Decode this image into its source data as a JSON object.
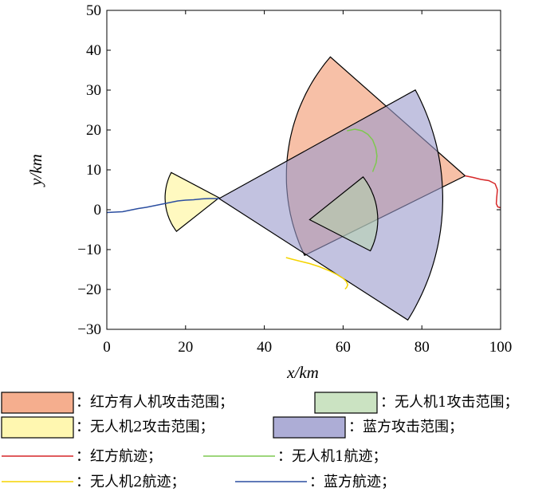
{
  "chart_data": {
    "type": "area",
    "xlabel": "x/km",
    "ylabel": "y/km",
    "xlim": [
      0,
      100
    ],
    "ylim": [
      -30,
      50
    ],
    "xticks": [
      0,
      20,
      40,
      60,
      80,
      100
    ],
    "yticks": [
      -30,
      -20,
      -10,
      0,
      10,
      20,
      30,
      40,
      50
    ],
    "xtick_labels": [
      "0",
      "20",
      "40",
      "60",
      "80",
      "100"
    ],
    "ytick_labels": [
      "−30",
      "−20",
      "−10",
      "0",
      "10",
      "20",
      "30",
      "40",
      "50"
    ],
    "grid": false,
    "legend_position": "bottom",
    "regions": [
      {
        "name": "：红方有人机攻击范围；",
        "color": "#f4a582",
        "opacity": 0.7,
        "apex": [
          91,
          8.5
        ],
        "radius": 45.4,
        "theta_from": 2.425,
        "theta_to": 3.597
      },
      {
        "name": "：蓝方攻击范围；",
        "color": "#9999cc",
        "opacity": 0.6,
        "apex": [
          28.5,
          2.8
        ],
        "radius": 56.8,
        "theta_from": -0.566,
        "theta_to": 0.5
      },
      {
        "name": "：无人机1攻击范围；",
        "color": "#b5d7a8",
        "opacity": 0.5,
        "apex": [
          51.5,
          -2.5
        ],
        "radius": 17.3,
        "theta_from": -0.469,
        "theta_to": 0.669
      },
      {
        "name": "：无人机2攻击范围；",
        "color": "#fff7b0",
        "opacity": 0.8,
        "apex": [
          28.5,
          3.0
        ],
        "radius": 13.7,
        "theta_from": 2.66,
        "theta_to": 3.803
      }
    ],
    "tracks": [
      {
        "name": "：红方航迹；",
        "color": "#d62728",
        "x": [
          91,
          93,
          95,
          97,
          98.6,
          99.2,
          99.0,
          98.9,
          99.3,
          100
        ],
        "y": [
          8.5,
          8.1,
          7.6,
          7.3,
          6.5,
          5.0,
          3.0,
          1.5,
          0.7,
          0.5
        ]
      },
      {
        "name": "：无人机1航迹；",
        "color": "#7ec850",
        "x": [
          61,
          63,
          64.8,
          66.3,
          67.5,
          68.3,
          68.6,
          68.4,
          67.9,
          67.5
        ],
        "y": [
          19.8,
          20.2,
          19.8,
          18.9,
          17.5,
          15.5,
          13.5,
          11.8,
          10.5,
          9.5
        ]
      },
      {
        "name": "：无人机2航迹；",
        "color": "#f5d400",
        "x": [
          45.5,
          47,
          49,
          51.5,
          54,
          56.5,
          58.5,
          60,
          60.8,
          61.2,
          60.9,
          60.5
        ],
        "y": [
          -12.0,
          -12.4,
          -12.9,
          -13.5,
          -14.3,
          -15.3,
          -16.3,
          -17.2,
          -18.0,
          -18.8,
          -19.5,
          -19.9
        ]
      },
      {
        "name": "：蓝方航迹；",
        "color": "#2b4ea0",
        "x": [
          0,
          2,
          4,
          6,
          8,
          10,
          12,
          14,
          16,
          18,
          20,
          22,
          24,
          26,
          28.5
        ],
        "y": [
          -0.7,
          -0.6,
          -0.5,
          -0.1,
          0.3,
          0.6,
          1.0,
          1.4,
          1.8,
          2.2,
          2.4,
          2.5,
          2.7,
          2.8,
          2.8
        ]
      }
    ]
  }
}
